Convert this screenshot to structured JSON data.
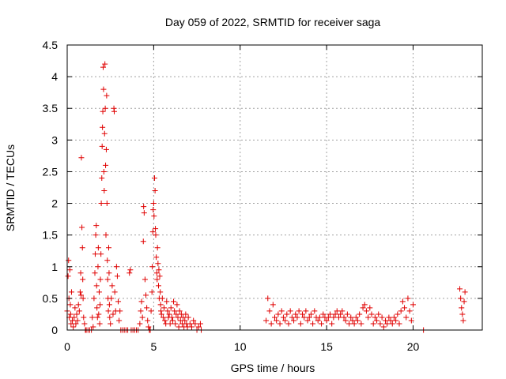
{
  "chart_data": {
    "type": "scatter",
    "title": "Day 059 of 2022, SRMTID for receiver saga",
    "xlabel": "GPS time / hours",
    "ylabel": "SRMTID / TECUs",
    "xlim": [
      0,
      24
    ],
    "ylim": [
      0,
      4.5
    ],
    "xticks": [
      "0",
      "5",
      "10",
      "15",
      "20"
    ],
    "xtick_values": [
      0,
      5,
      10,
      15,
      20
    ],
    "yticks": [
      "0",
      "0.5",
      "1",
      "1.5",
      "2",
      "2.5",
      "3",
      "3.5",
      "4",
      "4.5"
    ],
    "ytick_values": [
      0,
      0.5,
      1,
      1.5,
      2,
      2.5,
      3,
      3.5,
      4,
      4.5
    ],
    "grid": true,
    "marker": "plus",
    "color": "#e00000",
    "series": [
      {
        "name": "SRMTID",
        "points": [
          [
            0.0,
            0.3
          ],
          [
            0.05,
            0.85
          ],
          [
            0.08,
            1.1
          ],
          [
            0.1,
            0.5
          ],
          [
            0.12,
            0.2
          ],
          [
            0.15,
            0.95
          ],
          [
            0.18,
            0.4
          ],
          [
            0.2,
            0.25
          ],
          [
            0.22,
            0.1
          ],
          [
            0.25,
            0.6
          ],
          [
            0.3,
            0.15
          ],
          [
            0.35,
            0.05
          ],
          [
            0.4,
            0.2
          ],
          [
            0.45,
            0.35
          ],
          [
            0.5,
            0.1
          ],
          [
            0.55,
            0.25
          ],
          [
            0.6,
            0.15
          ],
          [
            0.65,
            0.4
          ],
          [
            0.7,
            0.3
          ],
          [
            0.75,
            0.6
          ],
          [
            0.78,
            0.9
          ],
          [
            0.8,
            0.55
          ],
          [
            0.82,
            2.72
          ],
          [
            0.85,
            1.62
          ],
          [
            0.88,
            1.3
          ],
          [
            0.9,
            0.8
          ],
          [
            0.92,
            0.5
          ],
          [
            0.95,
            0.2
          ],
          [
            1.0,
            0.1
          ],
          [
            1.05,
            0.0
          ],
          [
            1.1,
            0.0
          ],
          [
            1.2,
            0.0
          ],
          [
            1.3,
            0.0
          ],
          [
            1.4,
            0.0
          ],
          [
            1.45,
            0.2
          ],
          [
            1.5,
            0.05
          ],
          [
            1.55,
            0.5
          ],
          [
            1.6,
            0.9
          ],
          [
            1.62,
            1.2
          ],
          [
            1.65,
            1.5
          ],
          [
            1.68,
            1.65
          ],
          [
            1.7,
            0.7
          ],
          [
            1.72,
            0.35
          ],
          [
            1.75,
            0.2
          ],
          [
            1.78,
            1.0
          ],
          [
            1.8,
            1.3
          ],
          [
            1.82,
            0.25
          ],
          [
            1.85,
            0.6
          ],
          [
            1.88,
            0.1
          ],
          [
            1.9,
            0.4
          ],
          [
            1.92,
            0.8
          ],
          [
            1.95,
            1.2
          ],
          [
            1.97,
            2.0
          ],
          [
            2.0,
            2.4
          ],
          [
            2.02,
            2.9
          ],
          [
            2.04,
            3.2
          ],
          [
            2.06,
            3.45
          ],
          [
            2.08,
            4.15
          ],
          [
            2.1,
            3.8
          ],
          [
            2.12,
            2.5
          ],
          [
            2.14,
            2.2
          ],
          [
            2.16,
            3.1
          ],
          [
            2.18,
            4.2
          ],
          [
            2.2,
            3.5
          ],
          [
            2.22,
            2.6
          ],
          [
            2.24,
            1.5
          ],
          [
            2.26,
            2.85
          ],
          [
            2.28,
            3.7
          ],
          [
            2.3,
            2.0
          ],
          [
            2.32,
            1.1
          ],
          [
            2.34,
            0.8
          ],
          [
            2.36,
            0.5
          ],
          [
            2.38,
            0.3
          ],
          [
            2.4,
            1.3
          ],
          [
            2.42,
            0.9
          ],
          [
            2.44,
            0.4
          ],
          [
            2.46,
            0.2
          ],
          [
            2.5,
            0.1
          ],
          [
            2.55,
            0.5
          ],
          [
            2.6,
            0.7
          ],
          [
            2.65,
            0.25
          ],
          [
            2.7,
            3.5
          ],
          [
            2.72,
            3.45
          ],
          [
            2.75,
            0.6
          ],
          [
            2.8,
            0.3
          ],
          [
            2.85,
            1.0
          ],
          [
            2.9,
            0.85
          ],
          [
            2.95,
            0.45
          ],
          [
            3.0,
            0.15
          ],
          [
            3.05,
            0.3
          ],
          [
            3.1,
            0.0
          ],
          [
            3.2,
            0.0
          ],
          [
            3.3,
            0.0
          ],
          [
            3.4,
            0.0
          ],
          [
            3.5,
            0.0
          ],
          [
            3.6,
            0.9
          ],
          [
            3.65,
            0.95
          ],
          [
            3.7,
            0.0
          ],
          [
            3.8,
            0.0
          ],
          [
            3.9,
            0.0
          ],
          [
            4.0,
            0.0
          ],
          [
            4.1,
            0.0
          ],
          [
            4.2,
            0.1
          ],
          [
            4.25,
            0.3
          ],
          [
            4.3,
            0.45
          ],
          [
            4.35,
            0.2
          ],
          [
            4.4,
            1.4
          ],
          [
            4.42,
            1.95
          ],
          [
            4.45,
            1.85
          ],
          [
            4.5,
            0.8
          ],
          [
            4.55,
            0.55
          ],
          [
            4.6,
            0.35
          ],
          [
            4.65,
            0.15
          ],
          [
            4.7,
            0.05
          ],
          [
            4.75,
            0.0
          ],
          [
            4.8,
            0.0
          ],
          [
            4.85,
            0.3
          ],
          [
            4.9,
            0.6
          ],
          [
            4.92,
            1.0
          ],
          [
            4.95,
            1.55
          ],
          [
            4.97,
            1.9
          ],
          [
            5.0,
            2.0
          ],
          [
            5.02,
            1.8
          ],
          [
            5.05,
            2.4
          ],
          [
            5.08,
            2.2
          ],
          [
            5.1,
            1.6
          ],
          [
            5.12,
            1.5
          ],
          [
            5.15,
            1.15
          ],
          [
            5.18,
            0.9
          ],
          [
            5.2,
            0.8
          ],
          [
            5.22,
            1.3
          ],
          [
            5.25,
            1.05
          ],
          [
            5.28,
            0.7
          ],
          [
            5.3,
            0.95
          ],
          [
            5.32,
            0.5
          ],
          [
            5.35,
            0.85
          ],
          [
            5.38,
            0.6
          ],
          [
            5.4,
            0.4
          ],
          [
            5.42,
            0.3
          ],
          [
            5.45,
            0.25
          ],
          [
            5.5,
            0.5
          ],
          [
            5.55,
            0.2
          ],
          [
            5.6,
            0.35
          ],
          [
            5.65,
            0.15
          ],
          [
            5.7,
            0.1
          ],
          [
            5.75,
            0.45
          ],
          [
            5.8,
            0.3
          ],
          [
            5.85,
            0.2
          ],
          [
            5.9,
            0.25
          ],
          [
            5.95,
            0.1
          ],
          [
            6.0,
            0.35
          ],
          [
            6.05,
            0.2
          ],
          [
            6.1,
            0.15
          ],
          [
            6.15,
            0.45
          ],
          [
            6.2,
            0.3
          ],
          [
            6.25,
            0.1
          ],
          [
            6.3,
            0.25
          ],
          [
            6.35,
            0.4
          ],
          [
            6.4,
            0.2
          ],
          [
            6.45,
            0.05
          ],
          [
            6.5,
            0.3
          ],
          [
            6.55,
            0.15
          ],
          [
            6.6,
            0.25
          ],
          [
            6.65,
            0.1
          ],
          [
            6.7,
            0.2
          ],
          [
            6.75,
            0.05
          ],
          [
            6.8,
            0.15
          ],
          [
            6.85,
            0.25
          ],
          [
            6.9,
            0.1
          ],
          [
            6.95,
            0.05
          ],
          [
            7.0,
            0.2
          ],
          [
            7.1,
            0.1
          ],
          [
            7.2,
            0.05
          ],
          [
            7.3,
            0.15
          ],
          [
            7.4,
            0.1
          ],
          [
            7.5,
            0.0
          ],
          [
            7.6,
            0.05
          ],
          [
            7.7,
            0.1
          ],
          [
            7.75,
            0.0
          ],
          [
            11.5,
            0.15
          ],
          [
            11.6,
            0.5
          ],
          [
            11.7,
            0.3
          ],
          [
            11.8,
            0.1
          ],
          [
            11.9,
            0.4
          ],
          [
            12.0,
            0.2
          ],
          [
            12.1,
            0.15
          ],
          [
            12.2,
            0.25
          ],
          [
            12.3,
            0.1
          ],
          [
            12.4,
            0.3
          ],
          [
            12.5,
            0.2
          ],
          [
            12.6,
            0.15
          ],
          [
            12.7,
            0.25
          ],
          [
            12.8,
            0.1
          ],
          [
            12.9,
            0.3
          ],
          [
            13.0,
            0.2
          ],
          [
            13.1,
            0.15
          ],
          [
            13.2,
            0.25
          ],
          [
            13.3,
            0.2
          ],
          [
            13.4,
            0.3
          ],
          [
            13.5,
            0.1
          ],
          [
            13.6,
            0.25
          ],
          [
            13.7,
            0.2
          ],
          [
            13.8,
            0.3
          ],
          [
            13.9,
            0.15
          ],
          [
            14.0,
            0.2
          ],
          [
            14.1,
            0.25
          ],
          [
            14.2,
            0.1
          ],
          [
            14.3,
            0.3
          ],
          [
            14.4,
            0.2
          ],
          [
            14.5,
            0.15
          ],
          [
            14.6,
            0.2
          ],
          [
            14.7,
            0.1
          ],
          [
            14.8,
            0.25
          ],
          [
            14.9,
            0.2
          ],
          [
            15.0,
            0.15
          ],
          [
            15.1,
            0.2
          ],
          [
            15.2,
            0.25
          ],
          [
            15.3,
            0.1
          ],
          [
            15.4,
            0.2
          ],
          [
            15.5,
            0.25
          ],
          [
            15.6,
            0.3
          ],
          [
            15.7,
            0.2
          ],
          [
            15.8,
            0.25
          ],
          [
            15.9,
            0.3
          ],
          [
            16.0,
            0.2
          ],
          [
            16.1,
            0.15
          ],
          [
            16.2,
            0.25
          ],
          [
            16.3,
            0.1
          ],
          [
            16.4,
            0.2
          ],
          [
            16.5,
            0.15
          ],
          [
            16.6,
            0.1
          ],
          [
            16.7,
            0.2
          ],
          [
            16.8,
            0.15
          ],
          [
            16.9,
            0.25
          ],
          [
            17.0,
            0.1
          ],
          [
            17.1,
            0.35
          ],
          [
            17.2,
            0.4
          ],
          [
            17.3,
            0.3
          ],
          [
            17.4,
            0.2
          ],
          [
            17.5,
            0.35
          ],
          [
            17.6,
            0.25
          ],
          [
            17.7,
            0.1
          ],
          [
            17.8,
            0.2
          ],
          [
            17.9,
            0.15
          ],
          [
            18.0,
            0.25
          ],
          [
            18.1,
            0.1
          ],
          [
            18.2,
            0.2
          ],
          [
            18.3,
            0.05
          ],
          [
            18.4,
            0.15
          ],
          [
            18.5,
            0.1
          ],
          [
            18.6,
            0.2
          ],
          [
            18.7,
            0.15
          ],
          [
            18.8,
            0.1
          ],
          [
            18.9,
            0.2
          ],
          [
            19.0,
            0.15
          ],
          [
            19.1,
            0.25
          ],
          [
            19.2,
            0.1
          ],
          [
            19.3,
            0.3
          ],
          [
            19.4,
            0.45
          ],
          [
            19.5,
            0.35
          ],
          [
            19.6,
            0.2
          ],
          [
            19.7,
            0.5
          ],
          [
            19.8,
            0.3
          ],
          [
            19.9,
            0.15
          ],
          [
            20.0,
            0.4
          ],
          [
            20.6,
            0.0
          ],
          [
            22.7,
            0.65
          ],
          [
            22.75,
            0.5
          ],
          [
            22.8,
            0.35
          ],
          [
            22.85,
            0.25
          ],
          [
            22.9,
            0.15
          ],
          [
            22.95,
            0.45
          ],
          [
            23.0,
            0.6
          ]
        ]
      }
    ]
  }
}
